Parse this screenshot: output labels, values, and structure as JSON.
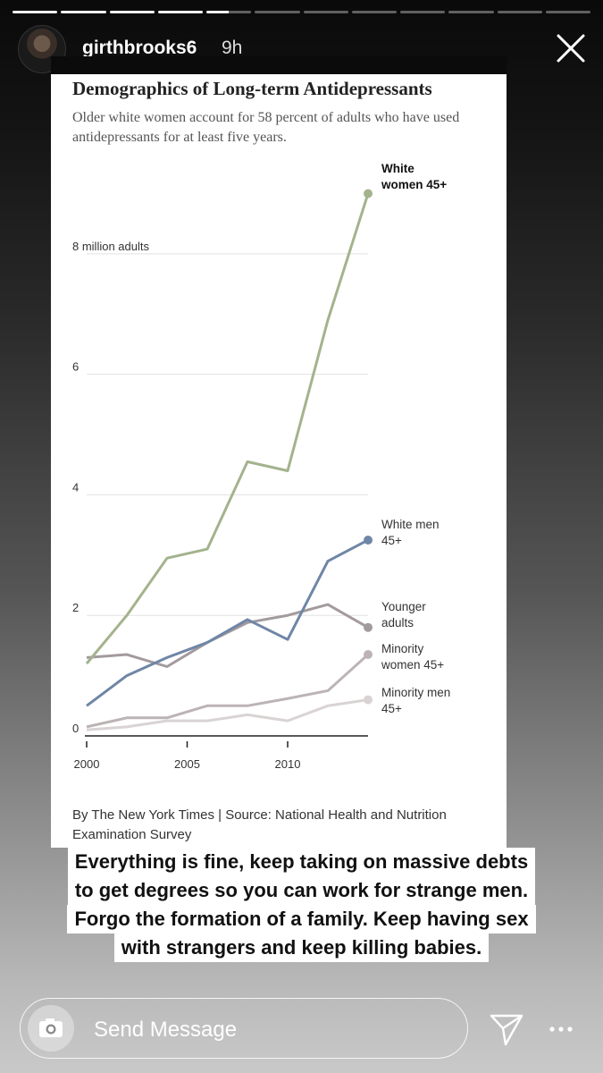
{
  "story": {
    "segments_total": 12,
    "segments_done": 4,
    "username": "girthbrooks6",
    "time": "9h",
    "caption_lines": [
      "Everything is fine, keep taking on massive debts",
      "to get degrees so you can work for strange men.",
      "Forgo the formation of a family. Keep having sex",
      "with strangers and keep killing babies."
    ],
    "message_placeholder": "Send Message"
  },
  "icons": {
    "close": "close-icon",
    "camera": "camera-icon",
    "send": "send-icon",
    "more": "more-icon"
  },
  "chart_data": {
    "type": "line",
    "title": "Demographics of Long-term Antidepressants",
    "subtitle": "Older white women account for 58 percent of adults who have used antidepressants for at least five years.",
    "y_unit_label": "8 million adults",
    "ylim": [
      0,
      9.2
    ],
    "yticks": [
      0,
      2,
      4,
      6,
      8
    ],
    "xlim": [
      2000,
      2014
    ],
    "xticks": [
      2000,
      2005,
      2010
    ],
    "grid": true,
    "x": [
      2000,
      2002,
      2004,
      2006,
      2008,
      2010,
      2012,
      2014
    ],
    "series": [
      {
        "name": "White women 45+",
        "color": "#a3b38d",
        "values": [
          1.2,
          2.0,
          2.95,
          3.1,
          4.55,
          4.4,
          6.9,
          9.0
        ]
      },
      {
        "name": "White men 45+",
        "color": "#6f86a6",
        "values": [
          0.5,
          1.0,
          1.3,
          1.55,
          1.93,
          1.6,
          2.9,
          3.25
        ]
      },
      {
        "name": "Younger adults",
        "color": "#a39a9e",
        "values": [
          1.3,
          1.35,
          1.15,
          1.55,
          1.88,
          2.0,
          2.18,
          1.8
        ]
      },
      {
        "name": "Minority women 45+",
        "color": "#bcb3b5",
        "values": [
          0.15,
          0.3,
          0.3,
          0.5,
          0.5,
          0.62,
          0.75,
          1.35
        ]
      },
      {
        "name": "Minority men 45+",
        "color": "#d9d3d3",
        "values": [
          0.1,
          0.15,
          0.25,
          0.25,
          0.35,
          0.25,
          0.5,
          0.6
        ]
      }
    ],
    "label_lines": [
      [
        "White",
        "women 45+"
      ],
      [
        "White men",
        "45+"
      ],
      [
        "Younger",
        "adults"
      ],
      [
        "Minority",
        "women 45+"
      ],
      [
        "Minority men",
        "45+"
      ]
    ],
    "credit": "By The New York Times | Source: National Health and Nutrition Examination Survey"
  }
}
